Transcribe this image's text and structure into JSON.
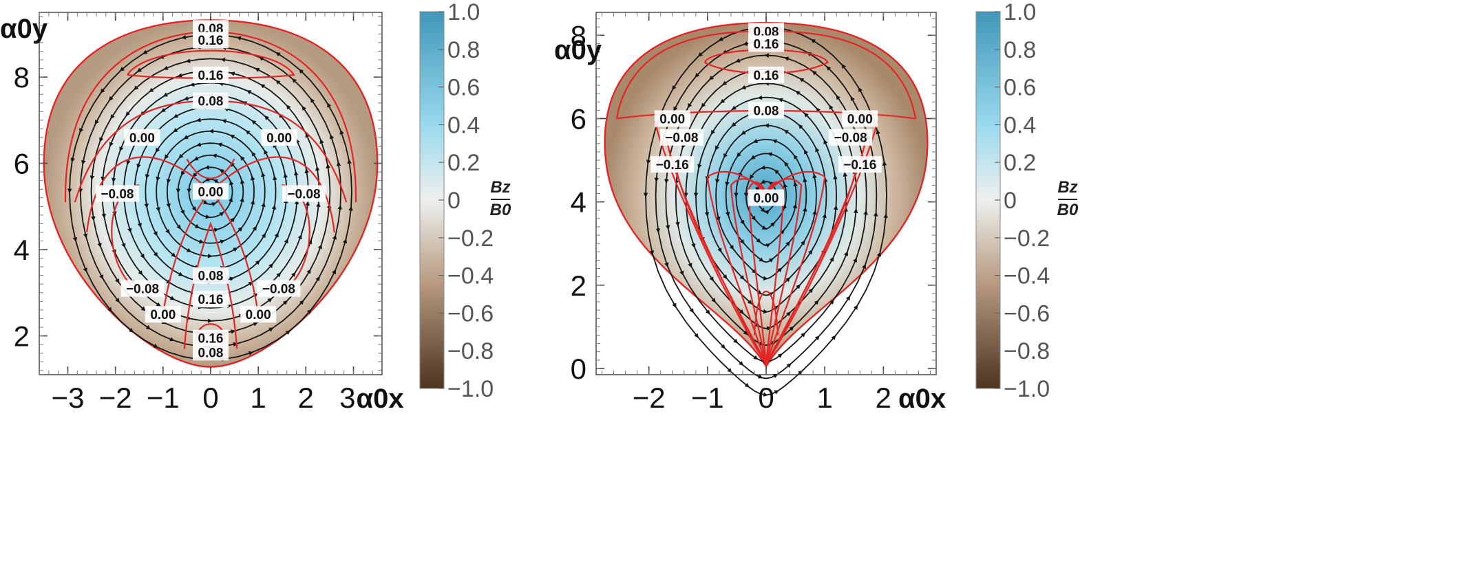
{
  "chart_data": [
    {
      "type": "heatmap",
      "panel": "left",
      "title": "",
      "xlabel": "α0x",
      "ylabel": "α0y",
      "xlim": [
        -3.6,
        3.6
      ],
      "ylim": [
        1.1,
        9.5
      ],
      "xticks": [
        -3,
        -2,
        -1,
        0,
        1,
        2
      ],
      "xtick_labels": [
        "−3",
        "−2",
        "−1",
        "0",
        "1",
        "2"
      ],
      "x_last_tick_label": "3",
      "x_last_tick_value": 3,
      "yticks": [
        2,
        4,
        6,
        8
      ],
      "ytick_labels": [
        "2",
        "4",
        "6",
        "8"
      ],
      "field": "Bz/B0",
      "center": [
        0,
        5.35
      ],
      "contour_labels": [
        {
          "text": "0.08",
          "x": 0.0,
          "y": 9.13
        },
        {
          "text": "0.16",
          "x": 0.0,
          "y": 8.86
        },
        {
          "text": "0.16",
          "x": 0.0,
          "y": 8.05
        },
        {
          "text": "0.08",
          "x": 0.0,
          "y": 7.45
        },
        {
          "text": "0.00",
          "x": -1.44,
          "y": 6.6
        },
        {
          "text": "0.00",
          "x": 1.44,
          "y": 6.6
        },
        {
          "text": "0.00",
          "x": 0.0,
          "y": 5.35
        },
        {
          "text": "−0.08",
          "x": -1.96,
          "y": 5.3
        },
        {
          "text": "−0.08",
          "x": 1.96,
          "y": 5.3
        },
        {
          "text": "0.08",
          "x": 0.0,
          "y": 3.4
        },
        {
          "text": "−0.08",
          "x": -1.43,
          "y": 3.1
        },
        {
          "text": "−0.08",
          "x": 1.43,
          "y": 3.1
        },
        {
          "text": "0.16",
          "x": 0.0,
          "y": 2.85
        },
        {
          "text": "0.00",
          "x": -1.0,
          "y": 2.5
        },
        {
          "text": "0.00",
          "x": 1.0,
          "y": 2.5
        },
        {
          "text": "0.16",
          "x": 0.0,
          "y": 1.95
        },
        {
          "text": "0.08",
          "x": 0.0,
          "y": 1.62
        }
      ]
    },
    {
      "type": "heatmap",
      "panel": "right",
      "title": "",
      "xlabel": "α0x",
      "ylabel": "α0y",
      "xlim": [
        -2.9,
        2.9
      ],
      "ylim": [
        -0.15,
        8.55
      ],
      "xticks": [
        -2,
        -1,
        0,
        1,
        2
      ],
      "xtick_labels": [
        "−2",
        "−1",
        "0",
        "1",
        "2"
      ],
      "yticks": [
        0,
        2,
        4,
        6,
        8
      ],
      "ytick_labels": [
        "0",
        "2",
        "4",
        "6",
        "8"
      ],
      "field": "Bz/B0",
      "center": [
        0,
        4.15
      ],
      "contour_labels": [
        {
          "text": "0.08",
          "x": 0.0,
          "y": 8.1
        },
        {
          "text": "0.16",
          "x": 0.0,
          "y": 7.8
        },
        {
          "text": "0.16",
          "x": 0.0,
          "y": 7.05
        },
        {
          "text": "0.08",
          "x": 0.0,
          "y": 6.2
        },
        {
          "text": "0.00",
          "x": -1.6,
          "y": 6.0
        },
        {
          "text": "−0.08",
          "x": -1.44,
          "y": 5.55
        },
        {
          "text": "−0.16",
          "x": -1.6,
          "y": 4.9
        },
        {
          "text": "0.00",
          "x": 1.6,
          "y": 6.0
        },
        {
          "text": "−0.08",
          "x": 1.44,
          "y": 5.55
        },
        {
          "text": "−0.16",
          "x": 1.6,
          "y": 4.9
        },
        {
          "text": "0.00",
          "x": 0.0,
          "y": 4.1
        }
      ]
    }
  ],
  "colorbars": [
    {
      "panel": "left",
      "range": [
        -1.0,
        1.0
      ],
      "ticks": [
        1.0,
        0.8,
        0.6,
        0.4,
        0.2,
        0,
        -0.2,
        -0.4,
        -0.6,
        -0.8,
        -1.0
      ],
      "tick_labels": [
        "1.0",
        "0.8",
        "0.6",
        "0.4",
        "0.2",
        "0",
        "−0.2",
        "−0.4",
        "−0.6",
        "−0.8",
        "−1.0"
      ],
      "label_num": "Bz",
      "label_den": "B0"
    },
    {
      "panel": "right",
      "range": [
        -1.0,
        1.0
      ],
      "ticks": [
        1.0,
        0.8,
        0.6,
        0.4,
        0.2,
        0,
        -0.2,
        -0.4,
        -0.6,
        -0.8,
        -1.0
      ],
      "tick_labels": [
        "1.0",
        "0.8",
        "0.6",
        "0.4",
        "0.2",
        "0",
        "−0.2",
        "−0.4",
        "−0.6",
        "−0.8",
        "−1.0"
      ],
      "label_num": "Bz",
      "label_den": "B0"
    }
  ],
  "colors": {
    "cb_top": "#3f97b8",
    "cb_upper": "#9ad9ee",
    "cb_mid": "#eef0ee",
    "cb_lower": "#b79a80",
    "cb_bottom": "#4e3320",
    "contour": "#e52525",
    "stream": "#151515",
    "frame": "#555555"
  }
}
